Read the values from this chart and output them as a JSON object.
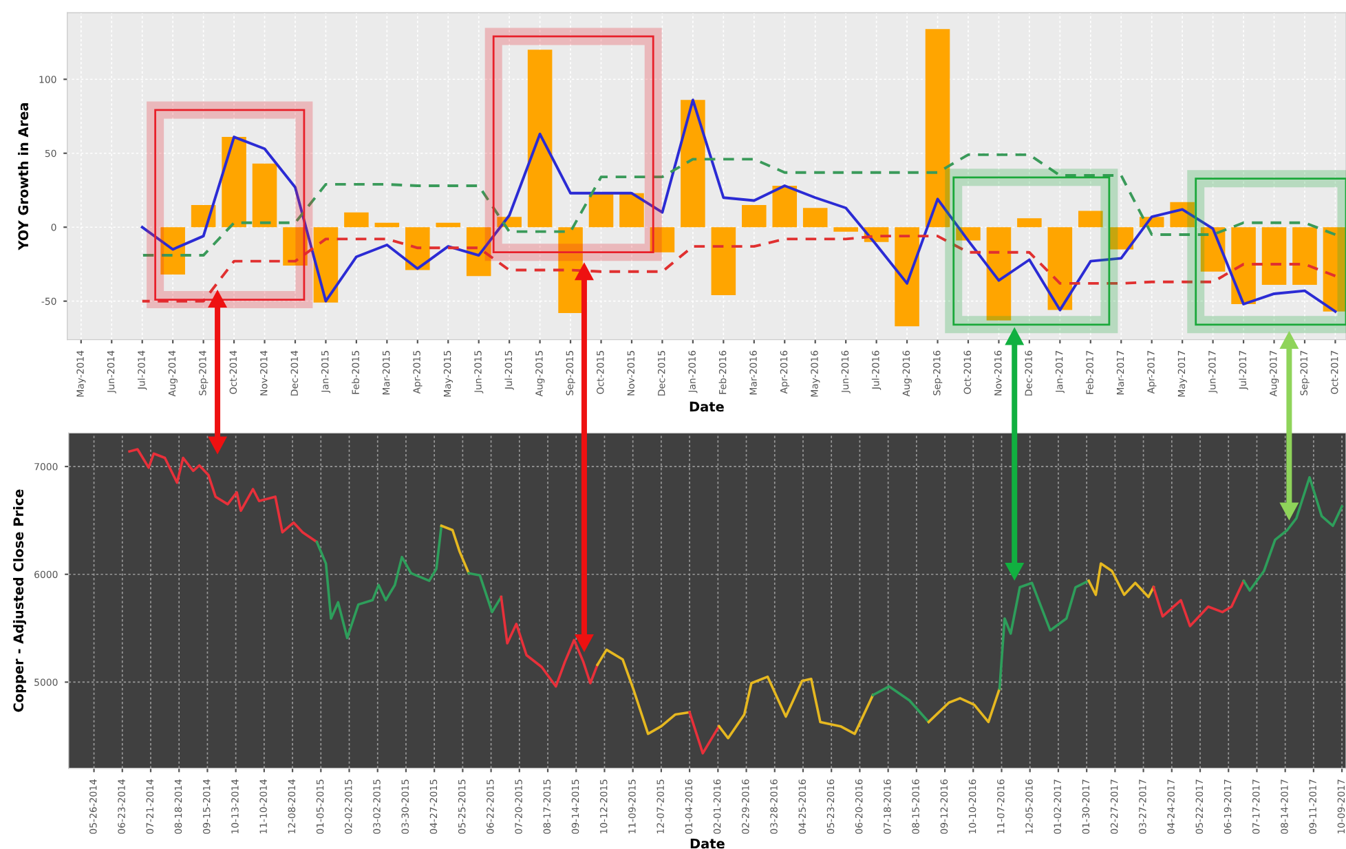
{
  "chart_data": [
    {
      "type": "bar",
      "ylabel": "YOY Growth in Area",
      "xlabel": "Date",
      "grid": true,
      "ylim": [
        -76,
        145
      ],
      "yticks": [
        -50,
        0,
        50,
        100
      ],
      "categories": [
        "May-2014",
        "Jun-2014",
        "Jul-2014",
        "Aug-2014",
        "Sep-2014",
        "Oct-2014",
        "Nov-2014",
        "Dec-2014",
        "Jan-2015",
        "Feb-2015",
        "Mar-2015",
        "Apr-2015",
        "May-2015",
        "Jun-2015",
        "Jul-2015",
        "Aug-2015",
        "Sep-2015",
        "Oct-2015",
        "Nov-2015",
        "Dec-2015",
        "Jan-2016",
        "Feb-2016",
        "Mar-2016",
        "Apr-2016",
        "May-2016",
        "Jun-2016",
        "Jul-2016",
        "Aug-2016",
        "Sep-2016",
        "Oct-2016",
        "Nov-2016",
        "Dec-2016",
        "Jan-2017",
        "Feb-2017",
        "Mar-2017",
        "Apr-2017",
        "May-2017",
        "Jun-2017",
        "Jul-2017",
        "Aug-2017",
        "Sep-2017",
        "Oct-2017"
      ],
      "series": [
        {
          "type": "bar",
          "color": "#ffa500",
          "values": [
            null,
            null,
            null,
            -32,
            15,
            61,
            43,
            -26,
            -51,
            10,
            3,
            -29,
            3,
            -33,
            7,
            120,
            -58,
            23,
            23,
            -17,
            86,
            -46,
            15,
            28,
            13,
            -3,
            -10,
            -67,
            134,
            -9,
            -63,
            6,
            -56,
            11,
            -15,
            7,
            17,
            -30,
            -52,
            -39,
            -39,
            -57
          ]
        },
        {
          "type": "line",
          "color": "#2b2bd4",
          "line_style": "solid",
          "values": [
            null,
            null,
            0,
            -15,
            -6,
            61,
            53,
            27,
            -50,
            -20,
            -12,
            -28,
            -13,
            -19,
            8,
            63,
            23,
            23,
            23,
            10,
            86,
            20,
            18,
            28,
            20,
            13,
            -12,
            -38,
            19,
            -9,
            -36,
            -22,
            -56,
            -23,
            -21,
            7,
            12,
            -1,
            -52,
            -45,
            -43,
            -57
          ]
        },
        {
          "type": "line",
          "color": "#3a9a5a",
          "line_style": "dashed",
          "values": [
            null,
            null,
            -19,
            -19,
            -19,
            3,
            3,
            3,
            29,
            29,
            29,
            28,
            28,
            28,
            -3,
            -3,
            -3,
            34,
            34,
            34,
            46,
            46,
            46,
            37,
            37,
            37,
            37,
            37,
            37,
            49,
            49,
            49,
            35,
            35,
            35,
            -5,
            -5,
            -5,
            3,
            3,
            3,
            -5
          ]
        },
        {
          "type": "line",
          "color": "#e03030",
          "line_style": "dashed",
          "values": [
            null,
            null,
            -50,
            -50,
            -50,
            -23,
            -23,
            -23,
            -8,
            -8,
            -8,
            -14,
            -14,
            -14,
            -29,
            -29,
            -29,
            -30,
            -30,
            -30,
            -13,
            -13,
            -13,
            -8,
            -8,
            -8,
            -6,
            -6,
            -6,
            -17,
            -17,
            -17,
            -38,
            -38,
            -38,
            -37,
            -37,
            -37,
            -25,
            -25,
            -25,
            -33
          ]
        }
      ]
    },
    {
      "type": "line",
      "ylabel": "Copper - Adjusted Close Price",
      "xlabel": "Date",
      "grid": true,
      "ylim": [
        4200,
        7311
      ],
      "yticks": [
        5000,
        6000,
        7000
      ],
      "xlim": [
        "2014-05-01",
        "2017-10-13"
      ],
      "xticks": [
        {
          "value": "2014-05-26",
          "label": "05-26-2014"
        },
        {
          "value": "2014-06-23",
          "label": "06-23-2014"
        },
        {
          "value": "2014-07-21",
          "label": "07-21-2014"
        },
        {
          "value": "2014-08-18",
          "label": "08-18-2014"
        },
        {
          "value": "2014-09-15",
          "label": "09-15-2014"
        },
        {
          "value": "2014-10-13",
          "label": "10-13-2014"
        },
        {
          "value": "2014-11-10",
          "label": "11-10-2014"
        },
        {
          "value": "2014-12-08",
          "label": "12-08-2014"
        },
        {
          "value": "2015-01-05",
          "label": "01-05-2015"
        },
        {
          "value": "2015-02-02",
          "label": "02-02-2015"
        },
        {
          "value": "2015-03-02",
          "label": "03-02-2015"
        },
        {
          "value": "2015-03-30",
          "label": "03-30-2015"
        },
        {
          "value": "2015-04-27",
          "label": "04-27-2015"
        },
        {
          "value": "2015-05-25",
          "label": "05-25-2015"
        },
        {
          "value": "2015-06-22",
          "label": "06-22-2015"
        },
        {
          "value": "2015-07-20",
          "label": "07-20-2015"
        },
        {
          "value": "2015-08-17",
          "label": "08-17-2015"
        },
        {
          "value": "2015-09-14",
          "label": "09-14-2015"
        },
        {
          "value": "2015-10-12",
          "label": "10-12-2015"
        },
        {
          "value": "2015-11-09",
          "label": "11-09-2015"
        },
        {
          "value": "2015-12-07",
          "label": "12-07-2015"
        },
        {
          "value": "2016-01-04",
          "label": "01-04-2016"
        },
        {
          "value": "2016-02-01",
          "label": "02-01-2016"
        },
        {
          "value": "2016-02-29",
          "label": "02-29-2016"
        },
        {
          "value": "2016-03-28",
          "label": "03-28-2016"
        },
        {
          "value": "2016-04-25",
          "label": "04-25-2016"
        },
        {
          "value": "2016-05-23",
          "label": "05-23-2016"
        },
        {
          "value": "2016-06-20",
          "label": "06-20-2016"
        },
        {
          "value": "2016-07-18",
          "label": "07-18-2016"
        },
        {
          "value": "2016-08-15",
          "label": "08-15-2016"
        },
        {
          "value": "2016-09-12",
          "label": "09-12-2016"
        },
        {
          "value": "2016-10-10",
          "label": "10-10-2016"
        },
        {
          "value": "2016-11-07",
          "label": "11-07-2016"
        },
        {
          "value": "2016-12-05",
          "label": "12-05-2016"
        },
        {
          "value": "2017-01-02",
          "label": "01-02-2017"
        },
        {
          "value": "2017-01-30",
          "label": "01-30-2017"
        },
        {
          "value": "2017-02-27",
          "label": "02-27-2017"
        },
        {
          "value": "2017-03-27",
          "label": "03-27-2017"
        },
        {
          "value": "2017-04-24",
          "label": "04-24-2017"
        },
        {
          "value": "2017-05-22",
          "label": "05-22-2017"
        },
        {
          "value": "2017-06-19",
          "label": "06-19-2017"
        },
        {
          "value": "2017-07-17",
          "label": "07-17-2017"
        },
        {
          "value": "2017-08-14",
          "label": "08-14-2017"
        },
        {
          "value": "2017-09-11",
          "label": "09-11-2017"
        },
        {
          "value": "2017-10-09",
          "label": "10-09-2017"
        }
      ],
      "series": [
        {
          "color": "#e8303a",
          "x": [
            "2014-06-30",
            "2014-07-08",
            "2014-07-19",
            "2014-07-24",
            "2014-08-04",
            "2014-08-16",
            "2014-08-22",
            "2014-09-01",
            "2014-09-07",
            "2014-09-16",
            "2014-09-23",
            "2014-10-05",
            "2014-10-14",
            "2014-10-18",
            "2014-10-30",
            "2014-11-05",
            "2014-11-21",
            "2014-11-28",
            "2014-12-09",
            "2014-12-18",
            "2015-01-01"
          ],
          "values": [
            7140,
            7160,
            6990,
            7120,
            7080,
            6850,
            7080,
            6960,
            7010,
            6920,
            6720,
            6650,
            6760,
            6590,
            6790,
            6680,
            6720,
            6390,
            6480,
            6390,
            6300
          ]
        },
        {
          "color": "#2e9e5b",
          "x": [
            "2015-01-01",
            "2015-01-10",
            "2015-01-15",
            "2015-01-22",
            "2015-01-31",
            "2015-02-11",
            "2015-02-25",
            "2015-03-03",
            "2015-03-10",
            "2015-03-19",
            "2015-03-26",
            "2015-04-04",
            "2015-04-22",
            "2015-04-29",
            "2015-05-04"
          ],
          "values": [
            6300,
            6100,
            5590,
            5740,
            5410,
            5720,
            5760,
            5900,
            5760,
            5900,
            6160,
            6010,
            5940,
            6050,
            6450
          ]
        },
        {
          "color": "#e6b820",
          "x": [
            "2015-05-04",
            "2015-05-15",
            "2015-05-22",
            "2015-05-31"
          ],
          "values": [
            6450,
            6410,
            6210,
            6010
          ]
        },
        {
          "color": "#2e9e5b",
          "x": [
            "2015-05-31",
            "2015-06-11",
            "2015-06-23",
            "2015-07-02"
          ],
          "values": [
            6010,
            5990,
            5650,
            5790
          ]
        },
        {
          "color": "#e8303a",
          "x": [
            "2015-07-02",
            "2015-07-08",
            "2015-07-17",
            "2015-07-27",
            "2015-08-11",
            "2015-08-25",
            "2015-09-03",
            "2015-09-12",
            "2015-09-21",
            "2015-09-28",
            "2015-10-05"
          ],
          "values": [
            5790,
            5360,
            5540,
            5250,
            5140,
            4960,
            5190,
            5390,
            5190,
            4990,
            5160
          ]
        },
        {
          "color": "#e6b820",
          "x": [
            "2015-10-05",
            "2015-10-14",
            "2015-10-30",
            "2015-11-10",
            "2015-11-24",
            "2015-12-07",
            "2015-12-21",
            "2016-01-04"
          ],
          "values": [
            5160,
            5300,
            5210,
            4920,
            4520,
            4590,
            4700,
            4720
          ]
        },
        {
          "color": "#e8303a",
          "x": [
            "2016-01-04",
            "2016-01-17",
            "2016-02-02"
          ],
          "values": [
            4720,
            4340,
            4590
          ]
        },
        {
          "color": "#e6b820",
          "x": [
            "2016-02-02",
            "2016-02-11",
            "2016-02-27",
            "2016-03-05",
            "2016-03-21",
            "2016-04-08",
            "2016-04-24",
            "2016-05-03",
            "2016-05-12",
            "2016-06-01",
            "2016-06-15",
            "2016-07-03"
          ],
          "values": [
            4590,
            4480,
            4700,
            4990,
            5050,
            4680,
            5010,
            5030,
            4630,
            4590,
            4520,
            4880
          ]
        },
        {
          "color": "#2e9e5b",
          "x": [
            "2016-07-03",
            "2016-07-19",
            "2016-08-08",
            "2016-08-27"
          ],
          "values": [
            4880,
            4960,
            4830,
            4630
          ]
        },
        {
          "color": "#e6b820",
          "x": [
            "2016-08-27",
            "2016-09-16",
            "2016-09-27",
            "2016-10-11",
            "2016-10-25",
            "2016-11-05"
          ],
          "values": [
            4630,
            4810,
            4850,
            4790,
            4630,
            4940
          ]
        },
        {
          "color": "#2e9e5b",
          "x": [
            "2016-11-05",
            "2016-11-10",
            "2016-11-16",
            "2016-11-25",
            "2016-12-07",
            "2016-12-25",
            "2017-01-10",
            "2017-01-19",
            "2017-02-01"
          ],
          "values": [
            4940,
            5590,
            5450,
            5880,
            5920,
            5480,
            5590,
            5880,
            5940
          ]
        },
        {
          "color": "#e6b820",
          "x": [
            "2017-02-01",
            "2017-02-08",
            "2017-02-13",
            "2017-02-24",
            "2017-03-08",
            "2017-03-19",
            "2017-04-01",
            "2017-04-06"
          ],
          "values": [
            5940,
            5810,
            6100,
            6030,
            5810,
            5920,
            5790,
            5880
          ]
        },
        {
          "color": "#e8303a",
          "x": [
            "2017-04-06",
            "2017-04-15",
            "2017-05-03",
            "2017-05-12",
            "2017-05-30",
            "2017-06-13",
            "2017-06-22",
            "2017-07-04"
          ],
          "values": [
            5880,
            5610,
            5760,
            5520,
            5700,
            5650,
            5700,
            5940
          ]
        },
        {
          "color": "#2e9e5b",
          "x": [
            "2017-07-04",
            "2017-07-10",
            "2017-07-24",
            "2017-08-04",
            "2017-08-16",
            "2017-08-25",
            "2017-09-07",
            "2017-09-19",
            "2017-09-30",
            "2017-10-09"
          ],
          "values": [
            5940,
            5850,
            6030,
            6320,
            6410,
            6520,
            6900,
            6540,
            6450,
            6630
          ]
        }
      ]
    }
  ]
}
